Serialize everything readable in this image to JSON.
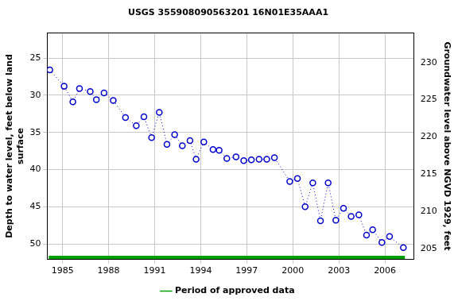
{
  "chart_data": {
    "type": "scatter",
    "title": "USGS 355908090563201 16N01E35AAA1",
    "ylabel": [
      "Depth to water level, feet below land",
      "surface"
    ],
    "y2label": "Groundwater level above NGVD 1929, feet",
    "xlim": [
      1984.0,
      2007.9
    ],
    "xticks": [
      1985,
      1988,
      1991,
      1994,
      1997,
      2000,
      2003,
      2006
    ],
    "ylim": [
      21.6,
      52.1
    ],
    "yticks": [
      25,
      30,
      35,
      40,
      45,
      50
    ],
    "y2lim": [
      203.5,
      234.0
    ],
    "y2ticks": [
      205,
      210,
      215,
      220,
      225,
      230
    ],
    "grid": true,
    "legend": "bottom",
    "series": [
      {
        "color": "#0000cc",
        "marker": "circle",
        "line_style": "dotted",
        "x": [
          1984.17,
          1985.1,
          1985.67,
          1986.1,
          1986.8,
          1987.2,
          1987.7,
          1988.3,
          1989.1,
          1989.8,
          1990.3,
          1990.8,
          1991.3,
          1991.8,
          1992.3,
          1992.8,
          1993.3,
          1993.7,
          1994.2,
          1994.8,
          1995.2,
          1995.7,
          1996.3,
          1996.8,
          1997.3,
          1997.8,
          1998.3,
          1998.8,
          1999.8,
          2000.3,
          2000.8,
          2001.3,
          2001.8,
          2002.3,
          2002.8,
          2003.3,
          2003.8,
          2004.3,
          2004.8,
          2005.2,
          2005.8,
          2006.3,
          2007.2
        ],
        "values": [
          26.6,
          28.8,
          30.9,
          29.1,
          29.5,
          30.6,
          29.7,
          30.7,
          33.0,
          34.1,
          32.9,
          35.7,
          32.3,
          36.6,
          35.3,
          36.8,
          36.1,
          38.6,
          36.3,
          37.3,
          37.4,
          38.5,
          38.3,
          38.8,
          38.7,
          38.6,
          38.6,
          38.4,
          41.6,
          41.2,
          45.0,
          41.8,
          46.9,
          41.8,
          46.8,
          45.2,
          46.3,
          46.1,
          48.8,
          48.1,
          49.8,
          49.0,
          50.5
        ]
      },
      {
        "name": "Period of approved data",
        "color": "#00a000",
        "line_style": "solid",
        "x": [
          1984.1,
          2007.3
        ],
        "values": [
          51.8,
          51.8
        ]
      }
    ]
  }
}
